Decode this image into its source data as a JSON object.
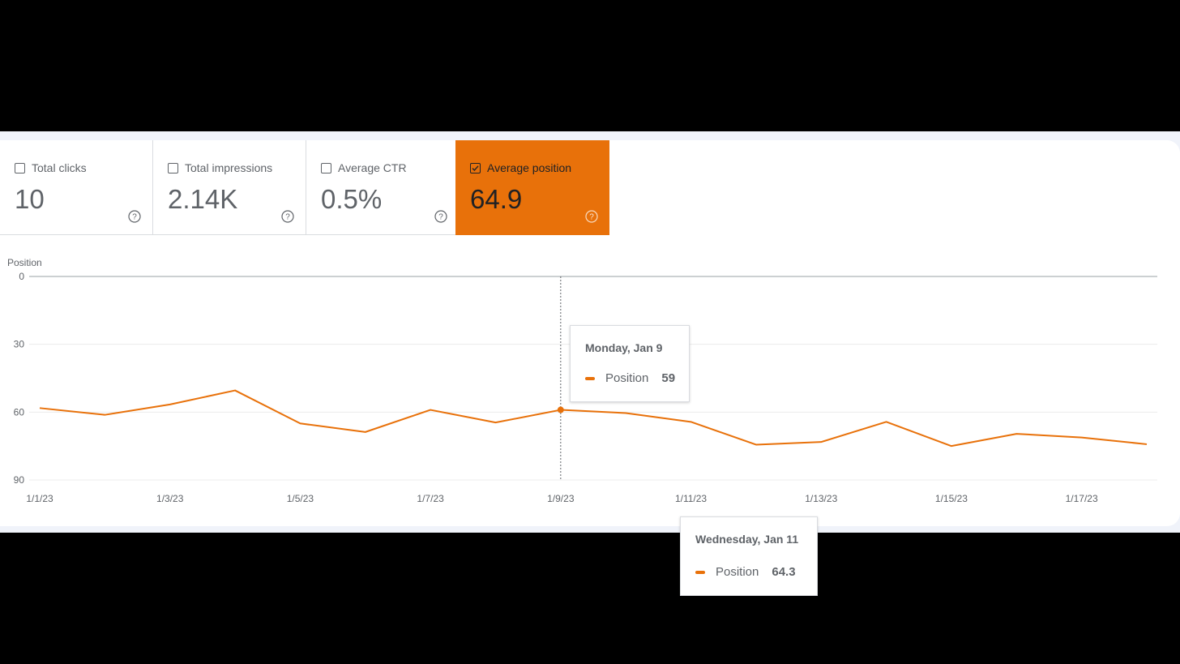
{
  "colors": {
    "accent": "#e8710a",
    "background": "#000000",
    "card": "#ffffff",
    "text": "#5f6368"
  },
  "metrics": [
    {
      "label": "Total clicks",
      "value": "10",
      "checked": false
    },
    {
      "label": "Total impressions",
      "value": "2.14K",
      "checked": false
    },
    {
      "label": "Average CTR",
      "value": "0.5%",
      "checked": false
    },
    {
      "label": "Average position",
      "value": "64.9",
      "checked": true
    }
  ],
  "icons": {
    "checkbox": "checkbox-icon",
    "help": "help-circle-icon"
  },
  "chart_data": {
    "type": "line",
    "ylabel": "Position",
    "yticks": [
      0,
      30,
      60,
      90
    ],
    "ylim": [
      0,
      90
    ],
    "y_inverted": true,
    "grid": true,
    "x": [
      "1/1/23",
      "1/2/23",
      "1/3/23",
      "1/4/23",
      "1/5/23",
      "1/6/23",
      "1/7/23",
      "1/8/23",
      "1/9/23",
      "1/10/23",
      "1/11/23",
      "1/12/23",
      "1/13/23",
      "1/14/23",
      "1/15/23",
      "1/16/23",
      "1/17/23",
      "1/18/23"
    ],
    "xtick_labels": [
      "1/1/23",
      "1/3/23",
      "1/5/23",
      "1/7/23",
      "1/9/23",
      "1/11/23",
      "1/13/23",
      "1/15/23",
      "1/17/23"
    ],
    "series": [
      {
        "name": "Position",
        "color": "#e8710a",
        "values": [
          58.2,
          61.2,
          56.6,
          50.4,
          65,
          68.8,
          59,
          64.6,
          59,
          60.4,
          64.3,
          74.4,
          73.2,
          64.3,
          75,
          69.6,
          71.2,
          74.2
        ]
      }
    ],
    "hover_x": "1/9/23"
  },
  "tooltips": [
    {
      "date": "Monday, Jan 9",
      "series": "Position",
      "value": "59"
    },
    {
      "date": "Wednesday, Jan 11",
      "series": "Position",
      "value": "64.3"
    }
  ]
}
